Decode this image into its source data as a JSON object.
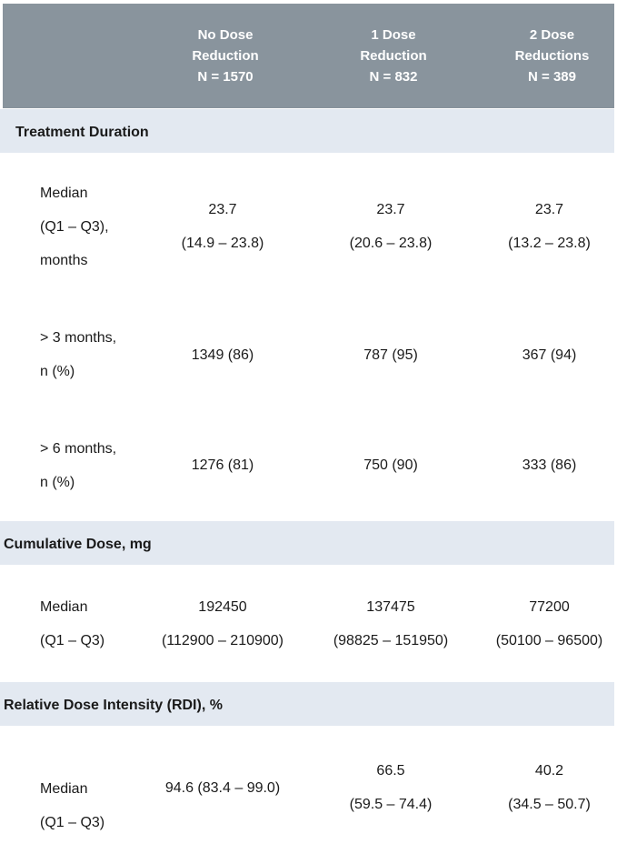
{
  "colors": {
    "header_bg": "#89949D",
    "header_text": "#FFFFFF",
    "section_bg": "#E3E9F1",
    "body_text": "#1A1A1A"
  },
  "table": {
    "columns": [
      {
        "name": "no-dose-reduction",
        "lines": [
          "No Dose",
          "Reduction",
          "N = 1570"
        ]
      },
      {
        "name": "one-dose-reduction",
        "lines": [
          "1 Dose",
          "Reduction",
          "N = 832"
        ]
      },
      {
        "name": "two-dose-reductions",
        "lines": [
          "2 Dose",
          "Reductions",
          "N = 389"
        ]
      }
    ],
    "sections": [
      {
        "title": "Treatment Duration",
        "rows": [
          {
            "label_lines": [
              "Median",
              "(Q1 – Q3),",
              "months"
            ],
            "values": [
              [
                "23.7",
                "(14.9 – 23.8)"
              ],
              [
                "23.7",
                "(20.6 – 23.8)"
              ],
              [
                "23.7",
                "(13.2 – 23.8)"
              ]
            ]
          },
          {
            "label_lines": [
              "> 3 months,",
              "n (%)"
            ],
            "values": [
              [
                "1349 (86)"
              ],
              [
                "787 (95)"
              ],
              [
                "367 (94)"
              ]
            ]
          },
          {
            "label_lines": [
              "> 6 months,",
              "n (%)"
            ],
            "values": [
              [
                "1276 (81)"
              ],
              [
                "750 (90)"
              ],
              [
                "333 (86)"
              ]
            ]
          }
        ]
      },
      {
        "title": "Cumulative Dose, mg",
        "rows": [
          {
            "label_lines": [
              "Median",
              "(Q1 – Q3)"
            ],
            "values": [
              [
                "192450",
                "(112900 – 210900)"
              ],
              [
                "137475",
                "(98825 – 151950)"
              ],
              [
                "77200",
                "(50100 – 96500)"
              ]
            ]
          }
        ]
      },
      {
        "title": "Relative Dose Intensity (RDI), %",
        "rows": [
          {
            "label_lines": [
              "Median",
              "(Q1 – Q3)"
            ],
            "values": [
              [
                "94.6 (83.4 – 99.0)"
              ],
              [
                "66.5",
                "(59.5 – 74.4)"
              ],
              [
                "40.2",
                "(34.5 – 50.7)"
              ]
            ]
          }
        ]
      }
    ]
  }
}
